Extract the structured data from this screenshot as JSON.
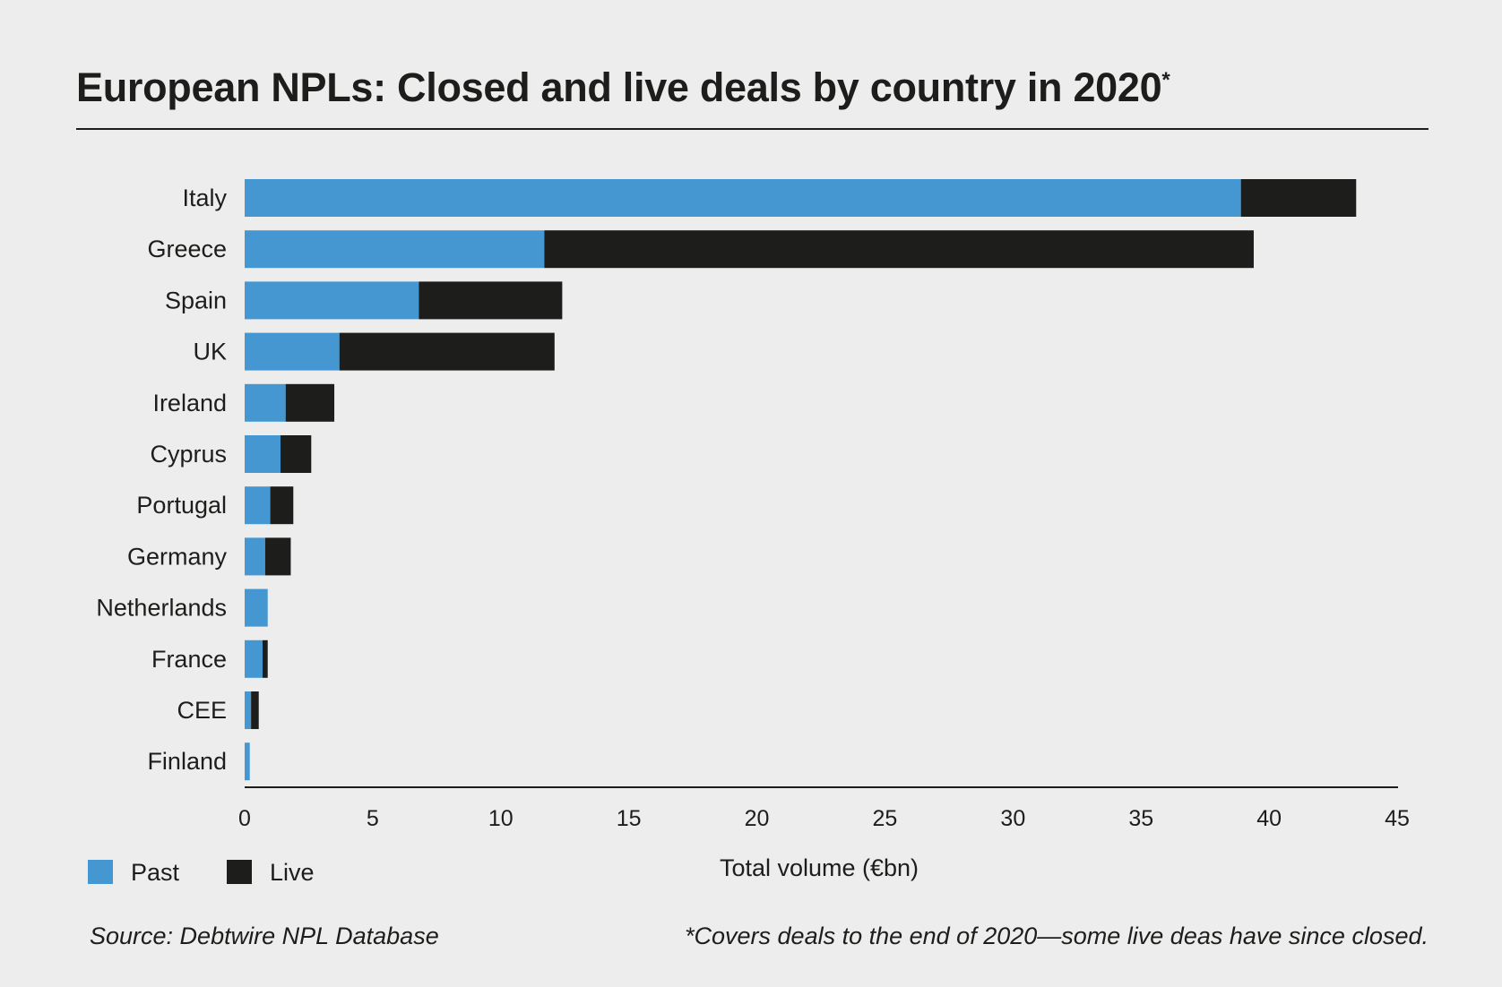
{
  "title": "European NPLs: Closed and live deals by country in 2020",
  "title_marker": "*",
  "source": "Source: Debtwire NPL Database",
  "footnote": "*Covers deals to the end of 2020—some live deas have since closed.",
  "colors": {
    "past": "#4497d0",
    "live": "#1d1d1b"
  },
  "chart_data": {
    "type": "bar",
    "orientation": "horizontal",
    "stacked": true,
    "title": "European NPLs: Closed and live deals by country in 2020*",
    "xlabel": "Total volume (€bn)",
    "ylabel": "",
    "xlim": [
      0,
      45
    ],
    "xticks": [
      0,
      5,
      10,
      15,
      20,
      25,
      30,
      35,
      40,
      45
    ],
    "grid": false,
    "legend": "bottom-left",
    "categories": [
      "Italy",
      "Greece",
      "Spain",
      "UK",
      "Ireland",
      "Cyprus",
      "Portugal",
      "Germany",
      "Netherlands",
      "France",
      "CEE",
      "Finland"
    ],
    "series": [
      {
        "name": "Past",
        "color": "#4497d0",
        "values": [
          38.9,
          11.7,
          6.8,
          3.7,
          1.6,
          1.4,
          1.0,
          0.8,
          0.9,
          0.7,
          0.25,
          0.2
        ]
      },
      {
        "name": "Live",
        "color": "#1d1d1b",
        "values": [
          4.5,
          27.7,
          5.6,
          8.4,
          1.9,
          1.2,
          0.9,
          1.0,
          0.0,
          0.2,
          0.3,
          0.0
        ]
      }
    ]
  }
}
